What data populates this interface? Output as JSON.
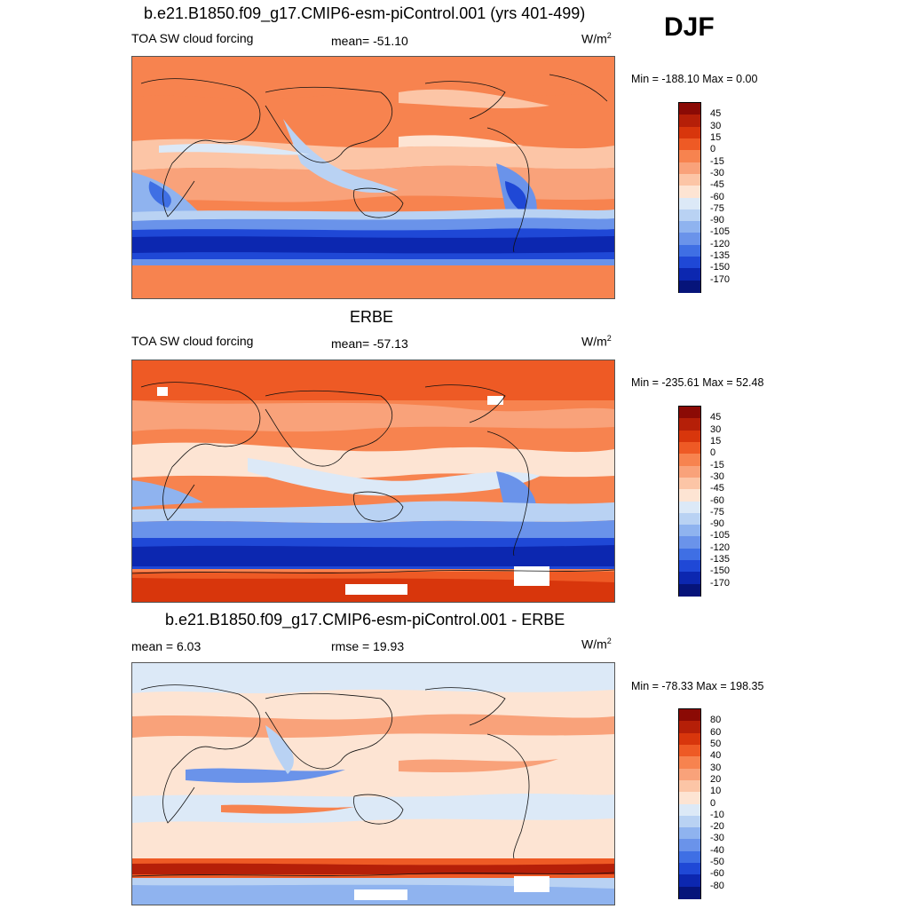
{
  "season": "DJF",
  "panels": [
    {
      "title": "b.e21.B1850.f09_g17.CMIP6-esm-piControl.001 (yrs 401-499)",
      "left_label": "TOA SW cloud forcing",
      "center_label": "mean= -51.10",
      "units": "W/m",
      "units_sup": "2",
      "minmax": "Min = -188.10 Max =   0.00",
      "colorbar": {
        "labels": [
          "45",
          "30",
          "15",
          "0",
          "-15",
          "-30",
          "-45",
          "-60",
          "-75",
          "-90",
          "-105",
          "-120",
          "-135",
          "-150",
          "-170"
        ],
        "colors": [
          "#8b0a05",
          "#b51f08",
          "#d8360c",
          "#ee5a25",
          "#f7834f",
          "#f9a27a",
          "#fcc5a6",
          "#fde4d3",
          "#dce9f7",
          "#b9d2f3",
          "#8fb3ef",
          "#6a93ea",
          "#3f6fe4",
          "#1f48d6",
          "#0c27b0",
          "#06147a"
        ]
      },
      "icon": "map-model-field"
    },
    {
      "title": "ERBE",
      "left_label": "TOA SW cloud forcing",
      "center_label": "mean= -57.13",
      "units": "W/m",
      "units_sup": "2",
      "minmax": "Min = -235.61 Max =  52.48",
      "colorbar": {
        "labels": [
          "45",
          "30",
          "15",
          "0",
          "-15",
          "-30",
          "-45",
          "-60",
          "-75",
          "-90",
          "-105",
          "-120",
          "-135",
          "-150",
          "-170"
        ],
        "colors": [
          "#8b0a05",
          "#b51f08",
          "#d8360c",
          "#ee5a25",
          "#f7834f",
          "#f9a27a",
          "#fcc5a6",
          "#fde4d3",
          "#dce9f7",
          "#b9d2f3",
          "#8fb3ef",
          "#6a93ea",
          "#3f6fe4",
          "#1f48d6",
          "#0c27b0",
          "#06147a"
        ]
      },
      "icon": "map-observation-field"
    },
    {
      "title": "b.e21.B1850.f09_g17.CMIP6-esm-piControl.001 - ERBE",
      "left_label": "mean =   6.03",
      "center_label": "rmse =  19.93",
      "units": "W/m",
      "units_sup": "2",
      "minmax": "Min = -78.33 Max = 198.35",
      "colorbar": {
        "labels": [
          "80",
          "60",
          "50",
          "40",
          "30",
          "20",
          "10",
          "0",
          "-10",
          "-20",
          "-30",
          "-40",
          "-50",
          "-60",
          "-80"
        ],
        "colors": [
          "#8b0a05",
          "#b51f08",
          "#d8360c",
          "#ee5a25",
          "#f7834f",
          "#f9a27a",
          "#fcc5a6",
          "#fde4d3",
          "#dce9f7",
          "#b9d2f3",
          "#8fb3ef",
          "#6a93ea",
          "#3f6fe4",
          "#1f48d6",
          "#0c27b0",
          "#06147a"
        ]
      },
      "icon": "map-difference-field"
    }
  ]
}
